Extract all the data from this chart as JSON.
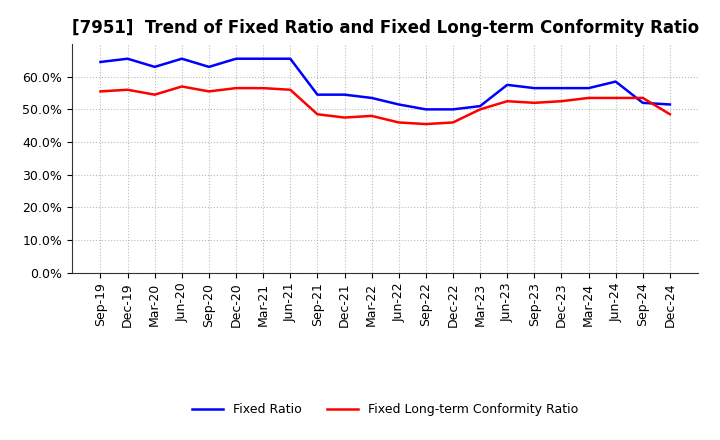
{
  "title": "[7951]  Trend of Fixed Ratio and Fixed Long-term Conformity Ratio",
  "x_labels": [
    "Sep-19",
    "Dec-19",
    "Mar-20",
    "Jun-20",
    "Sep-20",
    "Dec-20",
    "Mar-21",
    "Jun-21",
    "Sep-21",
    "Dec-21",
    "Mar-22",
    "Jun-22",
    "Sep-22",
    "Dec-22",
    "Mar-23",
    "Jun-23",
    "Sep-23",
    "Dec-23",
    "Mar-24",
    "Jun-24",
    "Sep-24",
    "Dec-24"
  ],
  "fixed_ratio": [
    64.5,
    65.5,
    63.0,
    65.5,
    63.0,
    65.5,
    65.5,
    65.5,
    54.5,
    54.5,
    53.5,
    51.5,
    50.0,
    50.0,
    51.0,
    57.5,
    56.5,
    56.5,
    56.5,
    58.5,
    52.0,
    51.5
  ],
  "fixed_lt_ratio": [
    55.5,
    56.0,
    54.5,
    57.0,
    55.5,
    56.5,
    56.5,
    56.0,
    48.5,
    47.5,
    48.0,
    46.0,
    45.5,
    46.0,
    50.0,
    52.5,
    52.0,
    52.5,
    53.5,
    53.5,
    53.5,
    48.5
  ],
  "blue_color": "#0000FF",
  "red_color": "#FF0000",
  "ylim": [
    0,
    70
  ],
  "yticks": [
    0,
    10,
    20,
    30,
    40,
    50,
    60
  ],
  "ytick_labels": [
    "0.0%",
    "10.0%",
    "20.0%",
    "30.0%",
    "40.0%",
    "50.0%",
    "60.0%"
  ],
  "background_color": "#FFFFFF",
  "grid_color": "#AAAAAA",
  "legend_fixed_ratio": "Fixed Ratio",
  "legend_fixed_lt_ratio": "Fixed Long-term Conformity Ratio",
  "title_fontsize": 12,
  "tick_fontsize": 9,
  "legend_fontsize": 9
}
